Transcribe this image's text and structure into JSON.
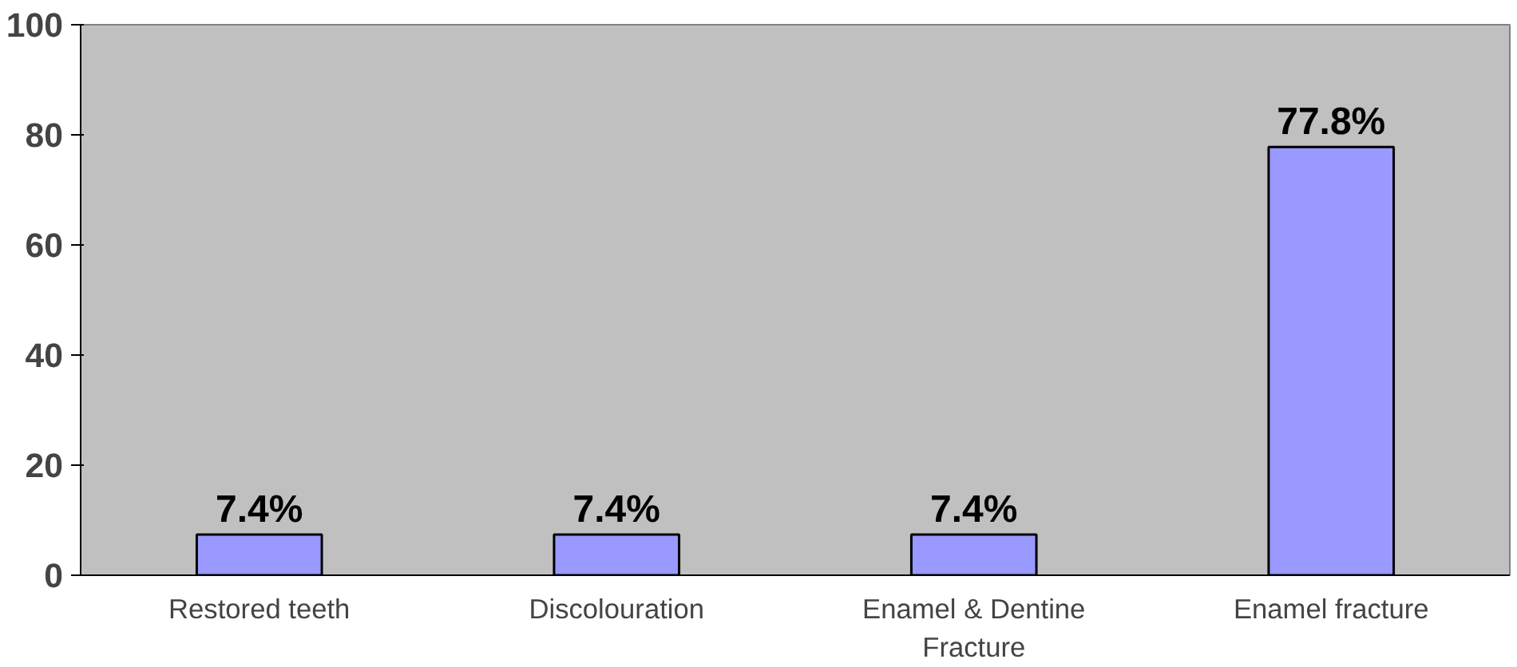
{
  "chart_data": {
    "type": "bar",
    "categories": [
      "Restored teeth",
      "Discolouration",
      "Enamel & Dentine Fracture",
      "Enamel fracture"
    ],
    "values": [
      7.4,
      7.4,
      7.4,
      77.8
    ],
    "color": "#9999ff",
    "value_labels": [
      "7.4%",
      "7.4%",
      "7.4%",
      "77.8%"
    ],
    "ylim": [
      0,
      100
    ],
    "yticks": [
      0,
      20,
      40,
      60,
      80,
      100
    ],
    "grid": false
  }
}
